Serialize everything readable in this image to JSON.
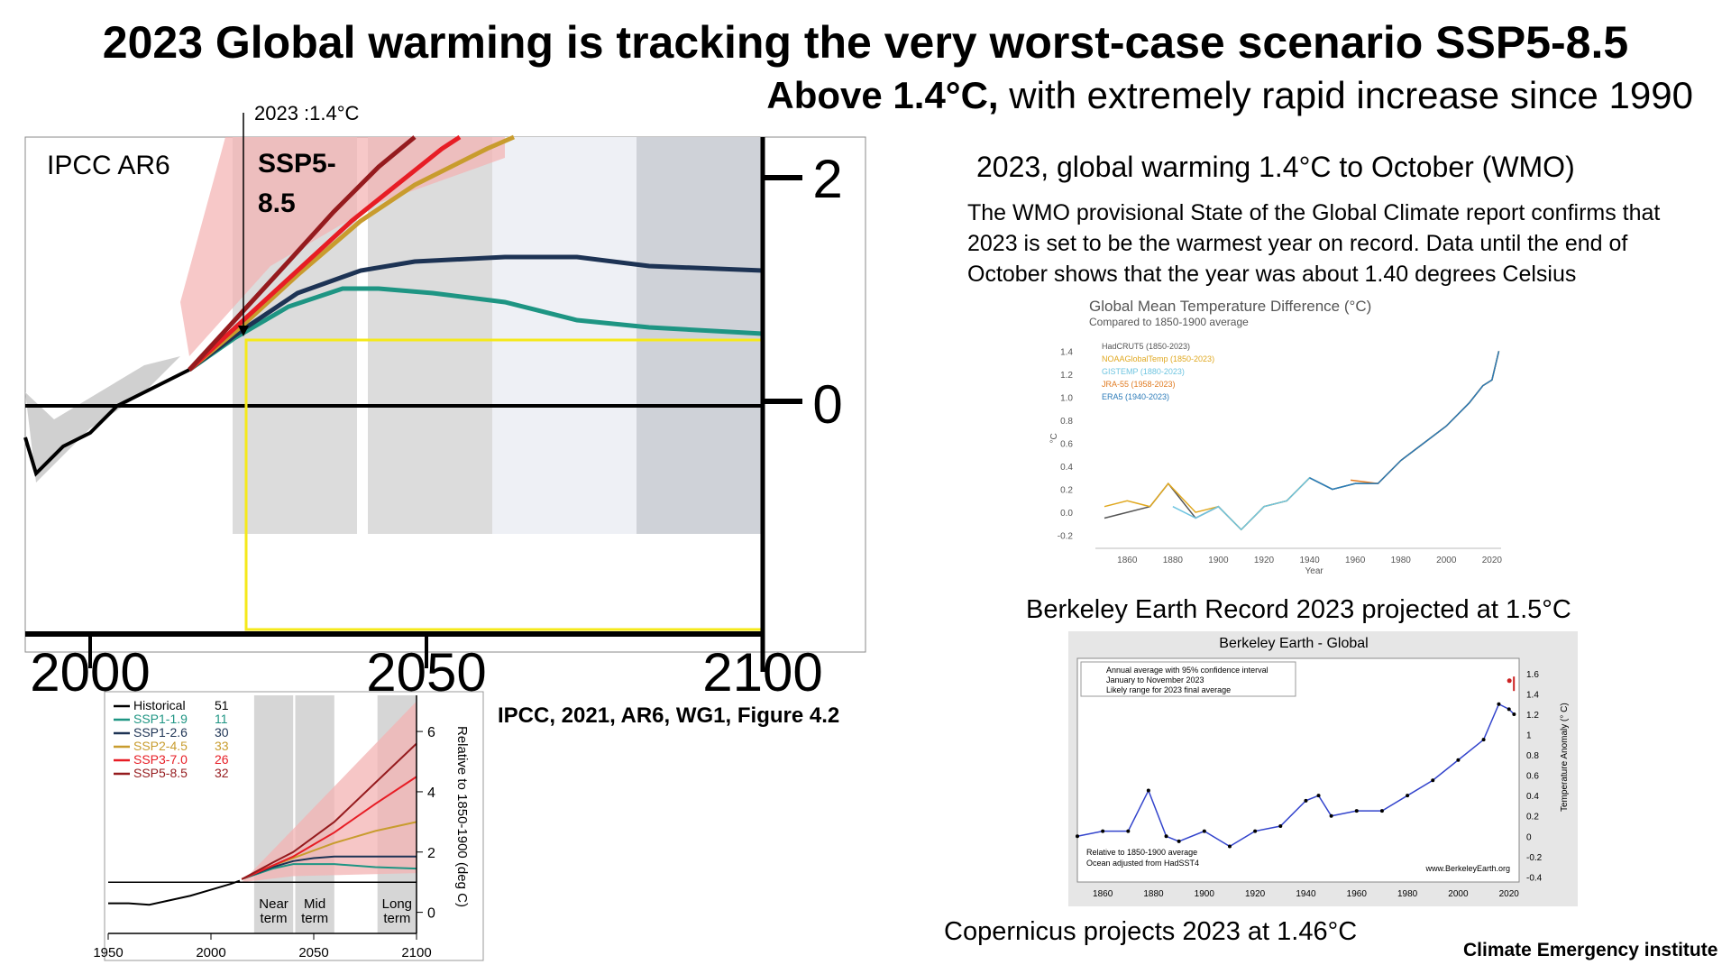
{
  "slide": {
    "title": "2023 Global warming is tracking the very worst-case scenario SSP5-8.5",
    "subtitle_bold": "Above 1.4°C,",
    "subtitle_rest": " with extremely rapid increase since 1990",
    "wmo_heading": "2023, global warming  1.4°C to October (WMO)",
    "wmo_text": "The WMO provisional State of the Global Climate report confirms that 2023 is set to be the warmest year on record. Data until the end of October shows that the year was about 1.40 degrees Celsius",
    "berkeley_heading": "Berkeley Earth Record  2023 projected at 1.5°C",
    "copernicus": "Copernicus projects 2023 at 1.46°C",
    "institute": "Climate Emergency institute",
    "ipcc_credit": "IPCC, 2021, AR6, WG1, Figure 4.2"
  },
  "zoom_panel": {
    "label": "IPCC AR6",
    "scenario_line1": "SSP5-",
    "scenario_line2": "8.5",
    "marker_label": "2023 :1.4°C",
    "x_ticks": [
      "2000",
      "2050",
      "2100"
    ],
    "y_ticks": [
      "2",
      "0"
    ]
  },
  "colors": {
    "historical": "#000000",
    "ssp119": "#1e9583",
    "ssp126": "#1d3354",
    "ssp245": "#c89c2e",
    "ssp370": "#e71d25",
    "ssp585": "#951b1e",
    "highlight": "#f5e91a",
    "hadcrut": "#555555",
    "noaa": "#e0a820",
    "gistemp": "#6ec4e0",
    "jra55": "#e07a20",
    "era5": "#2a7ab8",
    "berkeley_line": "#3344cc",
    "berkeley_smooth": "#cc2222"
  },
  "chart_data": [
    {
      "type": "line",
      "title": "",
      "xlabel": "",
      "ylabel": "Relative to 1850-1900 (deg C)",
      "xlim": [
        1950,
        2100
      ],
      "ylim": [
        -0.7,
        7.2
      ],
      "x_ticks": [
        "1950",
        "2000",
        "2050",
        "2100"
      ],
      "y_ticks": [
        "0",
        "2",
        "4",
        "6"
      ],
      "shaded_periods": [
        {
          "label_line1": "Near",
          "label_line2": "term",
          "from": 2021,
          "to": 2040
        },
        {
          "label_line1": "Mid",
          "label_line2": "term",
          "from": 2041,
          "to": 2060
        },
        {
          "label_line1": "Long",
          "label_line2": "term",
          "from": 2081,
          "to": 2100
        }
      ],
      "legend_position": "top-left",
      "series": [
        {
          "name": "Historical",
          "n": "51",
          "x": [
            1950,
            1960,
            1970,
            1980,
            1990,
            2000,
            2010,
            2014
          ],
          "values": [
            0.3,
            0.3,
            0.25,
            0.4,
            0.55,
            0.75,
            0.95,
            1.05
          ]
        },
        {
          "name": "SSP1-1.9",
          "n": "11",
          "x": [
            2015,
            2030,
            2040,
            2050,
            2060,
            2080,
            2100
          ],
          "values": [
            1.1,
            1.45,
            1.6,
            1.6,
            1.6,
            1.5,
            1.45
          ]
        },
        {
          "name": "SSP1-2.6",
          "n": "30",
          "x": [
            2015,
            2030,
            2040,
            2050,
            2060,
            2080,
            2100
          ],
          "values": [
            1.1,
            1.5,
            1.7,
            1.8,
            1.85,
            1.85,
            1.85
          ]
        },
        {
          "name": "SSP2-4.5",
          "n": "33",
          "x": [
            2015,
            2030,
            2040,
            2050,
            2060,
            2080,
            2100
          ],
          "values": [
            1.1,
            1.55,
            1.8,
            2.05,
            2.3,
            2.7,
            3.0
          ]
        },
        {
          "name": "SSP3-7.0",
          "n": "26",
          "x": [
            2015,
            2030,
            2040,
            2050,
            2060,
            2080,
            2100
          ],
          "values": [
            1.1,
            1.55,
            1.85,
            2.25,
            2.65,
            3.6,
            4.5
          ]
        },
        {
          "name": "SSP5-8.5",
          "n": "32",
          "x": [
            2015,
            2030,
            2040,
            2050,
            2060,
            2080,
            2100
          ],
          "values": [
            1.1,
            1.65,
            2.0,
            2.5,
            3.0,
            4.3,
            5.6
          ]
        }
      ]
    },
    {
      "type": "line",
      "title": "Global Mean Temperature Difference (°C)",
      "subtitle": "Compared to 1850-1900 average",
      "xlabel": "Year",
      "ylabel": "°C",
      "xlim": [
        1850,
        2024
      ],
      "ylim": [
        -0.25,
        1.45
      ],
      "x_ticks": [
        "1860",
        "1880",
        "1900",
        "1920",
        "1940",
        "1960",
        "1980",
        "2000",
        "2020"
      ],
      "y_ticks": [
        "-0.2",
        "0.0",
        "0.2",
        "0.4",
        "0.6",
        "0.8",
        "1.0",
        "1.2",
        "1.4"
      ],
      "legend_position": "top-left",
      "series": [
        {
          "name": "HadCRUT5 (1850-2023)",
          "x": [
            1850,
            1860,
            1870,
            1878,
            1890,
            1900,
            1910,
            1920,
            1930,
            1940,
            1950,
            1960,
            1970,
            1980,
            1990,
            2000,
            2010,
            2016,
            2020,
            2023
          ],
          "values": [
            -0.05,
            0.0,
            0.05,
            0.25,
            -0.05,
            0.05,
            -0.15,
            0.05,
            0.1,
            0.3,
            0.2,
            0.25,
            0.25,
            0.45,
            0.6,
            0.75,
            0.95,
            1.1,
            1.15,
            1.4
          ]
        },
        {
          "name": "NOAAGlobalTemp (1850-2023)",
          "x": [
            1850,
            1860,
            1870,
            1878,
            1890,
            1900,
            1910,
            1920,
            1930,
            1940,
            1950,
            1960,
            1970,
            1980,
            1990,
            2000,
            2010,
            2016,
            2020,
            2023
          ],
          "values": [
            0.05,
            0.1,
            0.05,
            0.25,
            0.0,
            0.05,
            -0.15,
            0.05,
            0.1,
            0.3,
            0.2,
            0.25,
            0.25,
            0.45,
            0.6,
            0.75,
            0.95,
            1.1,
            1.15,
            1.4
          ]
        },
        {
          "name": "GISTEMP (1880-2023)",
          "x": [
            1880,
            1890,
            1900,
            1910,
            1920,
            1930,
            1940,
            1950,
            1960,
            1970,
            1980,
            1990,
            2000,
            2010,
            2016,
            2020,
            2023
          ],
          "values": [
            0.05,
            -0.05,
            0.05,
            -0.15,
            0.05,
            0.1,
            0.3,
            0.2,
            0.25,
            0.25,
            0.45,
            0.6,
            0.75,
            0.95,
            1.1,
            1.15,
            1.4
          ]
        },
        {
          "name": "JRA-55 (1958-2023)",
          "x": [
            1958,
            1970,
            1980,
            1990,
            2000,
            2010,
            2016,
            2020,
            2023
          ],
          "values": [
            0.28,
            0.25,
            0.45,
            0.6,
            0.75,
            0.95,
            1.1,
            1.15,
            1.4
          ]
        },
        {
          "name": "ERA5 (1940-2023)",
          "x": [
            1940,
            1950,
            1960,
            1970,
            1980,
            1990,
            2000,
            2010,
            2016,
            2020,
            2023
          ],
          "values": [
            0.3,
            0.2,
            0.25,
            0.25,
            0.45,
            0.6,
            0.75,
            0.95,
            1.1,
            1.15,
            1.4
          ]
        }
      ]
    },
    {
      "type": "line",
      "title": "Berkeley Earth - Global",
      "xlabel": "",
      "ylabel": "Temperature Anomaly (° C)",
      "xlim": [
        1850,
        2024
      ],
      "ylim": [
        -0.45,
        1.75
      ],
      "x_ticks": [
        "1860",
        "1880",
        "1900",
        "1920",
        "1940",
        "1960",
        "1980",
        "2000",
        "2020"
      ],
      "y_ticks": [
        "-0.4",
        "-0.2",
        "0",
        "0.2",
        "0.4",
        "0.6",
        "0.8",
        "1",
        "1.2",
        "1.4",
        "1.6"
      ],
      "legend_position": "top-left",
      "legend": [
        "Annual average with 95% confidence interval",
        "January to November 2023",
        "Likely range for 2023 final average"
      ],
      "notes": [
        "Relative to 1850-1900 average",
        "Ocean adjusted from HadSST4"
      ],
      "source": "www.BerkeleyEarth.org",
      "series": [
        {
          "name": "Annual average with 95% confidence interval",
          "x": [
            1850,
            1860,
            1870,
            1878,
            1885,
            1890,
            1900,
            1910,
            1920,
            1930,
            1940,
            1945,
            1950,
            1960,
            1970,
            1980,
            1990,
            2000,
            2010,
            2016,
            2020,
            2022
          ],
          "values": [
            0.0,
            0.05,
            0.05,
            0.45,
            0.0,
            -0.05,
            0.05,
            -0.1,
            0.05,
            0.1,
            0.35,
            0.4,
            0.2,
            0.25,
            0.25,
            0.4,
            0.55,
            0.75,
            0.95,
            1.3,
            1.25,
            1.2
          ]
        },
        {
          "name": "January to November 2023",
          "x": [
            2023
          ],
          "values": [
            1.53
          ]
        },
        {
          "name": "Likely range for 2023 final average",
          "x": [
            2023
          ],
          "values": [
            1.5
          ]
        }
      ]
    }
  ]
}
